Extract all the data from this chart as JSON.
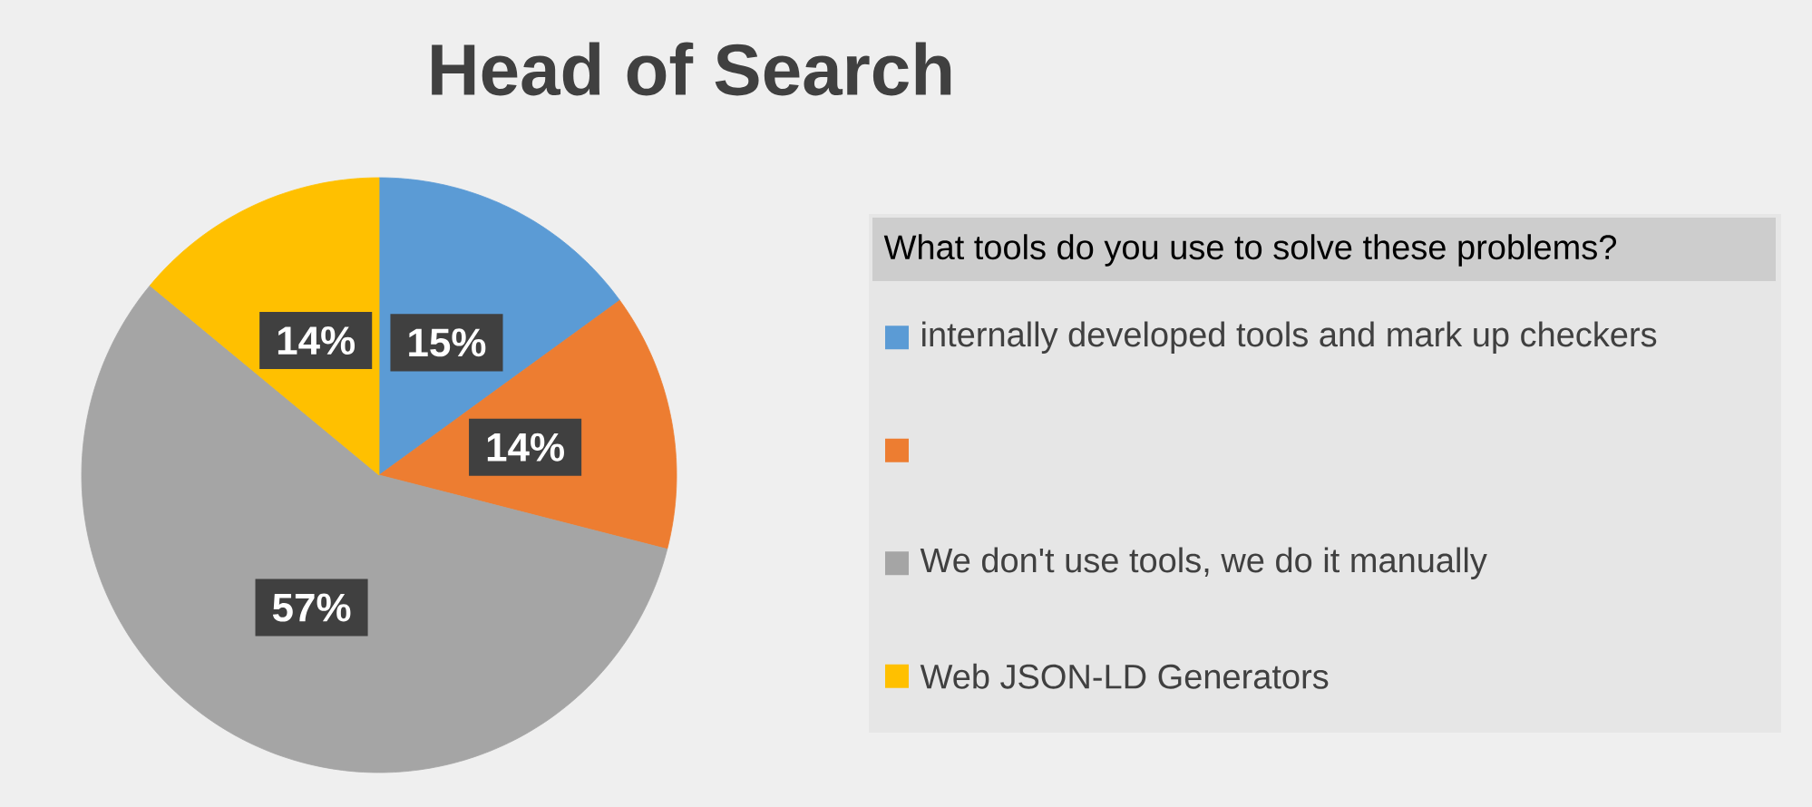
{
  "chart_data": {
    "type": "pie",
    "title": "Head of Search",
    "legend_title": "What tools do you use to solve these problems?",
    "categories": [
      "internally developed tools and mark up checkers",
      null,
      "We don't use tools, we do it manually",
      "Web JSON-LD Generators"
    ],
    "values": [
      15,
      14,
      57,
      14
    ],
    "colors": [
      "#5b9bd5",
      "#ed7d31",
      "#a5a5a5",
      "#ffc000"
    ],
    "value_labels": [
      "15%",
      "14%",
      "57%",
      "14%"
    ],
    "legend": "right"
  }
}
